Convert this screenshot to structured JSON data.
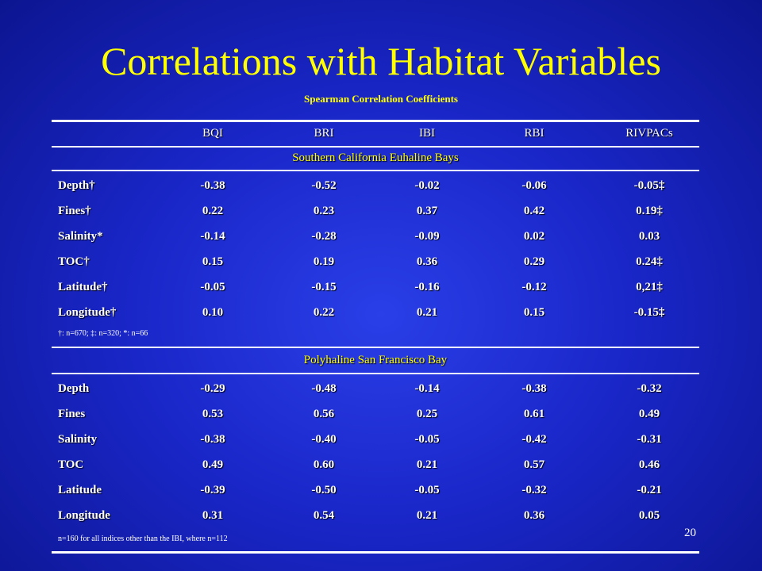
{
  "title": "Correlations with Habitat Variables",
  "subtitle": "Spearman Correlation Coefficients",
  "headers": [
    "BQI",
    "BRI",
    "IBI",
    "RBI",
    "RIVPACs"
  ],
  "sections": [
    {
      "title": "Southern California Euhaline Bays",
      "rows": [
        {
          "label": "Depth†",
          "values": [
            "-0.38",
            "-0.52",
            "-0.02",
            "-0.06",
            "-0.05‡"
          ]
        },
        {
          "label": "Fines†",
          "values": [
            "0.22",
            "0.23",
            "0.37",
            "0.42",
            "0.19‡"
          ]
        },
        {
          "label": "Salinity*",
          "values": [
            "-0.14",
            "-0.28",
            "-0.09",
            "0.02",
            "0.03"
          ]
        },
        {
          "label": "TOC†",
          "values": [
            "0.15",
            "0.19",
            "0.36",
            "0.29",
            "0.24‡"
          ]
        },
        {
          "label": "Latitude†",
          "values": [
            "-0.05",
            "-0.15",
            "-0.16",
            "-0.12",
            "0,21‡"
          ]
        },
        {
          "label": "Longitude†",
          "values": [
            "0.10",
            "0.22",
            "0.21",
            "0.15",
            "-0.15‡"
          ]
        }
      ],
      "note": "†: n=670; ‡: n=320; *: n=66"
    },
    {
      "title": "Polyhaline San Francisco Bay",
      "rows": [
        {
          "label": "Depth",
          "values": [
            "-0.29",
            "-0.48",
            "-0.14",
            "-0.38",
            "-0.32"
          ]
        },
        {
          "label": "Fines",
          "values": [
            "0.53",
            "0.56",
            "0.25",
            "0.61",
            "0.49"
          ]
        },
        {
          "label": "Salinity",
          "values": [
            "-0.38",
            "-0.40",
            "-0.05",
            "-0.42",
            "-0.31"
          ]
        },
        {
          "label": "TOC",
          "values": [
            "0.49",
            "0.60",
            "0.21",
            "0.57",
            "0.46"
          ]
        },
        {
          "label": "Latitude",
          "values": [
            "-0.39",
            "-0.50",
            "-0.05",
            "-0.32",
            "-0.21"
          ]
        },
        {
          "label": "Longitude",
          "values": [
            "0.31",
            "0.54",
            "0.21",
            "0.36",
            "0.05"
          ]
        }
      ],
      "note": "n=160 for all indices other than the IBI, where n=112"
    }
  ],
  "page_number": "20"
}
